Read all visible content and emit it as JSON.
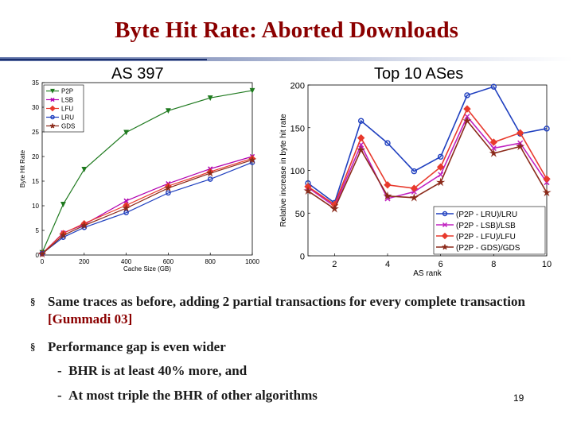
{
  "slide": {
    "title": "Byte Hit Rate: Aborted Downloads",
    "left_subtitle": "AS 397",
    "right_subtitle": "Top 10 ASes",
    "bullets": [
      {
        "text": "Same traces as before, adding 2 partial transactions for every complete transaction ",
        "cite": "[Gummadi 03]"
      },
      {
        "text": "Performance gap is even wider",
        "cite": ""
      }
    ],
    "subbullets": [
      "BHR is at least 40% more, and",
      "At most triple the BHR of other algorithms"
    ],
    "page_number": "19"
  },
  "chart_data": [
    {
      "type": "line",
      "title": "",
      "xlabel": "Cache Size (GB)",
      "ylabel": "Byte Hit Rate",
      "xlim": [
        0,
        1000
      ],
      "ylim": [
        0,
        35
      ],
      "xticks": [
        0,
        200,
        400,
        600,
        800,
        1000
      ],
      "yticks": [
        0,
        5,
        10,
        15,
        20,
        25,
        30,
        35
      ],
      "grid": false,
      "legend_position": "top-left",
      "x": [
        0,
        100,
        200,
        400,
        600,
        800,
        1000
      ],
      "series": [
        {
          "name": "P2P",
          "color": "#1f7a1f",
          "marker": "triangle-down",
          "values": [
            0.5,
            10.3,
            17.4,
            24.9,
            29.3,
            31.9,
            33.4
          ]
        },
        {
          "name": "LSB",
          "color": "#b000b0",
          "marker": "x",
          "values": [
            0.3,
            4.5,
            6.2,
            11.0,
            14.5,
            17.5,
            20.0
          ]
        },
        {
          "name": "LFU",
          "color": "#e8392c",
          "marker": "diamond",
          "values": [
            0.3,
            4.4,
            6.4,
            10.1,
            14.0,
            16.9,
            19.6
          ]
        },
        {
          "name": "LRU",
          "color": "#1f3fbf",
          "marker": "circle",
          "values": [
            0.3,
            3.6,
            5.6,
            8.6,
            12.6,
            15.4,
            18.8
          ]
        },
        {
          "name": "GDS",
          "color": "#8b2a1a",
          "marker": "star",
          "values": [
            0.2,
            4.0,
            6.0,
            9.5,
            13.6,
            16.6,
            19.3
          ]
        }
      ]
    },
    {
      "type": "line",
      "title": "",
      "xlabel": "AS rank",
      "ylabel": "Relative increase in byte hit rate",
      "xlim": [
        1,
        10
      ],
      "ylim": [
        0,
        200
      ],
      "xticks": [
        2,
        4,
        6,
        8,
        10
      ],
      "yticks": [
        0,
        50,
        100,
        150,
        200
      ],
      "grid": false,
      "legend_position": "bottom-right",
      "x": [
        1,
        2,
        3,
        4,
        5,
        6,
        7,
        8,
        9,
        10
      ],
      "series": [
        {
          "name": "(P2P - LRU)/LRU",
          "color": "#1f3fbf",
          "marker": "circle",
          "values": [
            85,
            62,
            158,
            132,
            99,
            116,
            188,
            198,
            143,
            149
          ]
        },
        {
          "name": "(P2P - LSB)/LSB",
          "color": "#c020c0",
          "marker": "x",
          "values": [
            80,
            58,
            130,
            67,
            75,
            95,
            163,
            126,
            132,
            86
          ]
        },
        {
          "name": "(P2P - LFU)/LFU",
          "color": "#e8392c",
          "marker": "diamond",
          "values": [
            81,
            60,
            138,
            83,
            79,
            104,
            172,
            133,
            144,
            90
          ]
        },
        {
          "name": "(P2P - GDS)/GDS",
          "color": "#8b2a1a",
          "marker": "star",
          "values": [
            76,
            55,
            124,
            70,
            68,
            86,
            158,
            120,
            128,
            74
          ]
        }
      ]
    }
  ]
}
